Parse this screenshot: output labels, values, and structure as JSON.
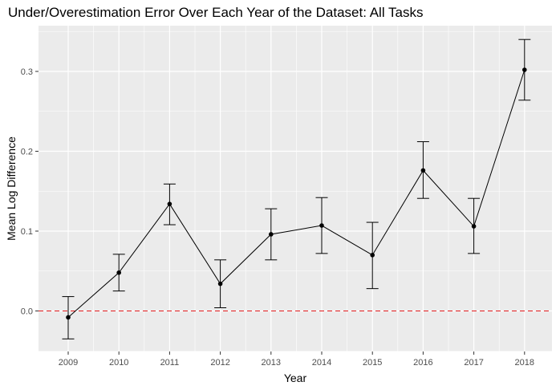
{
  "chart_data": {
    "type": "line",
    "title": "Under/Overestimation Error Over Each Year of the Dataset: All Tasks",
    "xlabel": "Year",
    "ylabel": "Mean Log Difference",
    "categories": [
      "2009",
      "2010",
      "2011",
      "2012",
      "2013",
      "2014",
      "2015",
      "2016",
      "2017",
      "2018"
    ],
    "series": [
      {
        "values": [
          -0.008,
          0.048,
          0.134,
          0.034,
          0.096,
          0.107,
          0.07,
          0.176,
          0.106,
          0.302
        ],
        "lower": [
          -0.035,
          0.025,
          0.108,
          0.004,
          0.064,
          0.072,
          0.028,
          0.141,
          0.072,
          0.264
        ],
        "upper": [
          0.018,
          0.071,
          0.159,
          0.064,
          0.128,
          0.142,
          0.111,
          0.212,
          0.141,
          0.34
        ]
      }
    ],
    "yticks": [
      0.0,
      0.1,
      0.2,
      0.3
    ],
    "ytick_labels": [
      "0.0",
      "0.1",
      "0.2",
      "0.3"
    ],
    "ylim": [
      -0.05,
      0.35
    ],
    "reference_line": {
      "y": 0,
      "style": "dashed",
      "color": "#e41a1c"
    },
    "grid": true,
    "colors": {
      "panel_background": "#ebebeb",
      "grid": "#ffffff",
      "line": "#000000",
      "reference": "#e41a1c"
    }
  }
}
